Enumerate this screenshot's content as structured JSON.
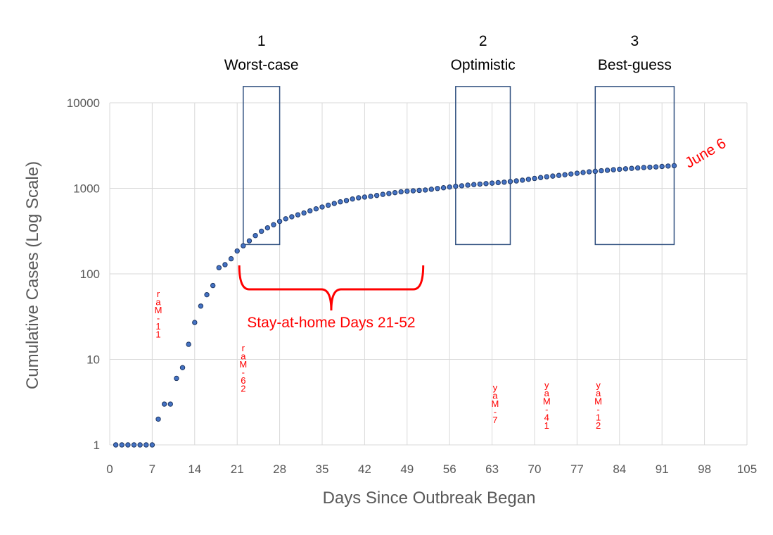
{
  "chart_data": {
    "type": "scatter",
    "title": "",
    "xlabel": "Days Since Outbreak Began",
    "ylabel": "Cumulative Cases (Log Scale)",
    "xlim": [
      0,
      105
    ],
    "ylim": [
      1,
      10000
    ],
    "y_scale": "log",
    "grid": true,
    "marker_color": "#4472c4",
    "marker_edge": "#1f3864",
    "accent_color": "#ff0000",
    "box_color": "#2f4f7f",
    "x_ticks": [
      "0",
      "7",
      "14",
      "21",
      "28",
      "35",
      "42",
      "49",
      "56",
      "63",
      "70",
      "77",
      "84",
      "91",
      "98",
      "105"
    ],
    "y_ticks": [
      "1",
      "10",
      "100",
      "1000",
      "10000"
    ],
    "series": [
      {
        "x": [
          1,
          2,
          3,
          4,
          5,
          6,
          7,
          8,
          9,
          10,
          11,
          12,
          13,
          14,
          15,
          16,
          17,
          18,
          19,
          20,
          21,
          22,
          23,
          24,
          25,
          26,
          27,
          28,
          29,
          30,
          31,
          32,
          33,
          34,
          35,
          36,
          37,
          38,
          39,
          40,
          41,
          42,
          43,
          44,
          45,
          46,
          47,
          48,
          49,
          50,
          51,
          52,
          53,
          54,
          55,
          56,
          57,
          58,
          59,
          60,
          61,
          62,
          63,
          64,
          65,
          66,
          67,
          68,
          69,
          70,
          71,
          72,
          73,
          74,
          75,
          76,
          77,
          78,
          79,
          80,
          81,
          82,
          83,
          84,
          85,
          86,
          87,
          88,
          89,
          90,
          91,
          92,
          93
        ],
        "y": [
          1,
          1,
          1,
          1,
          1,
          1,
          1,
          2,
          3,
          3,
          6,
          8,
          15,
          27,
          42,
          57,
          73,
          118,
          128,
          150,
          185,
          213,
          243,
          280,
          315,
          345,
          375,
          410,
          440,
          465,
          490,
          515,
          545,
          575,
          605,
          635,
          665,
          695,
          720,
          750,
          775,
          790,
          805,
          825,
          850,
          870,
          890,
          910,
          925,
          935,
          945,
          955,
          975,
          995,
          1015,
          1035,
          1055,
          1070,
          1090,
          1105,
          1120,
          1135,
          1150,
          1165,
          1180,
          1200,
          1220,
          1245,
          1275,
          1305,
          1335,
          1365,
          1390,
          1415,
          1440,
          1470,
          1500,
          1530,
          1560,
          1580,
          1605,
          1625,
          1650,
          1670,
          1690,
          1710,
          1730,
          1750,
          1765,
          1780,
          1800,
          1820,
          1840
        ]
      }
    ],
    "scenarios": [
      {
        "number": "1",
        "label": "Worst-case",
        "x_start": 22,
        "x_end": 28,
        "y_low": 220,
        "y_high": 15500
      },
      {
        "number": "2",
        "label": "Optimistic",
        "x_start": 57,
        "x_end": 66,
        "y_low": 220,
        "y_high": 15500
      },
      {
        "number": "3",
        "label": "Best-guess",
        "x_start": 80,
        "x_end": 93,
        "y_low": 220,
        "y_high": 15500
      }
    ],
    "stay_at_home": {
      "label": "Stay-at-home Days 21-52",
      "x_start": 21,
      "x_end": 52,
      "y": 100
    },
    "end_label": {
      "text": "June 6",
      "x": 93,
      "y": 1840
    },
    "date_annotations": [
      {
        "text": "11-Mar",
        "x": 8,
        "y": 18
      },
      {
        "text": "26-Mar",
        "x": 22,
        "y": 4.2
      },
      {
        "text": "7-May",
        "x": 63.5,
        "y": 1.8
      },
      {
        "text": "14-May",
        "x": 72,
        "y": 1.55
      },
      {
        "text": "21-May",
        "x": 80.5,
        "y": 1.55
      }
    ]
  }
}
